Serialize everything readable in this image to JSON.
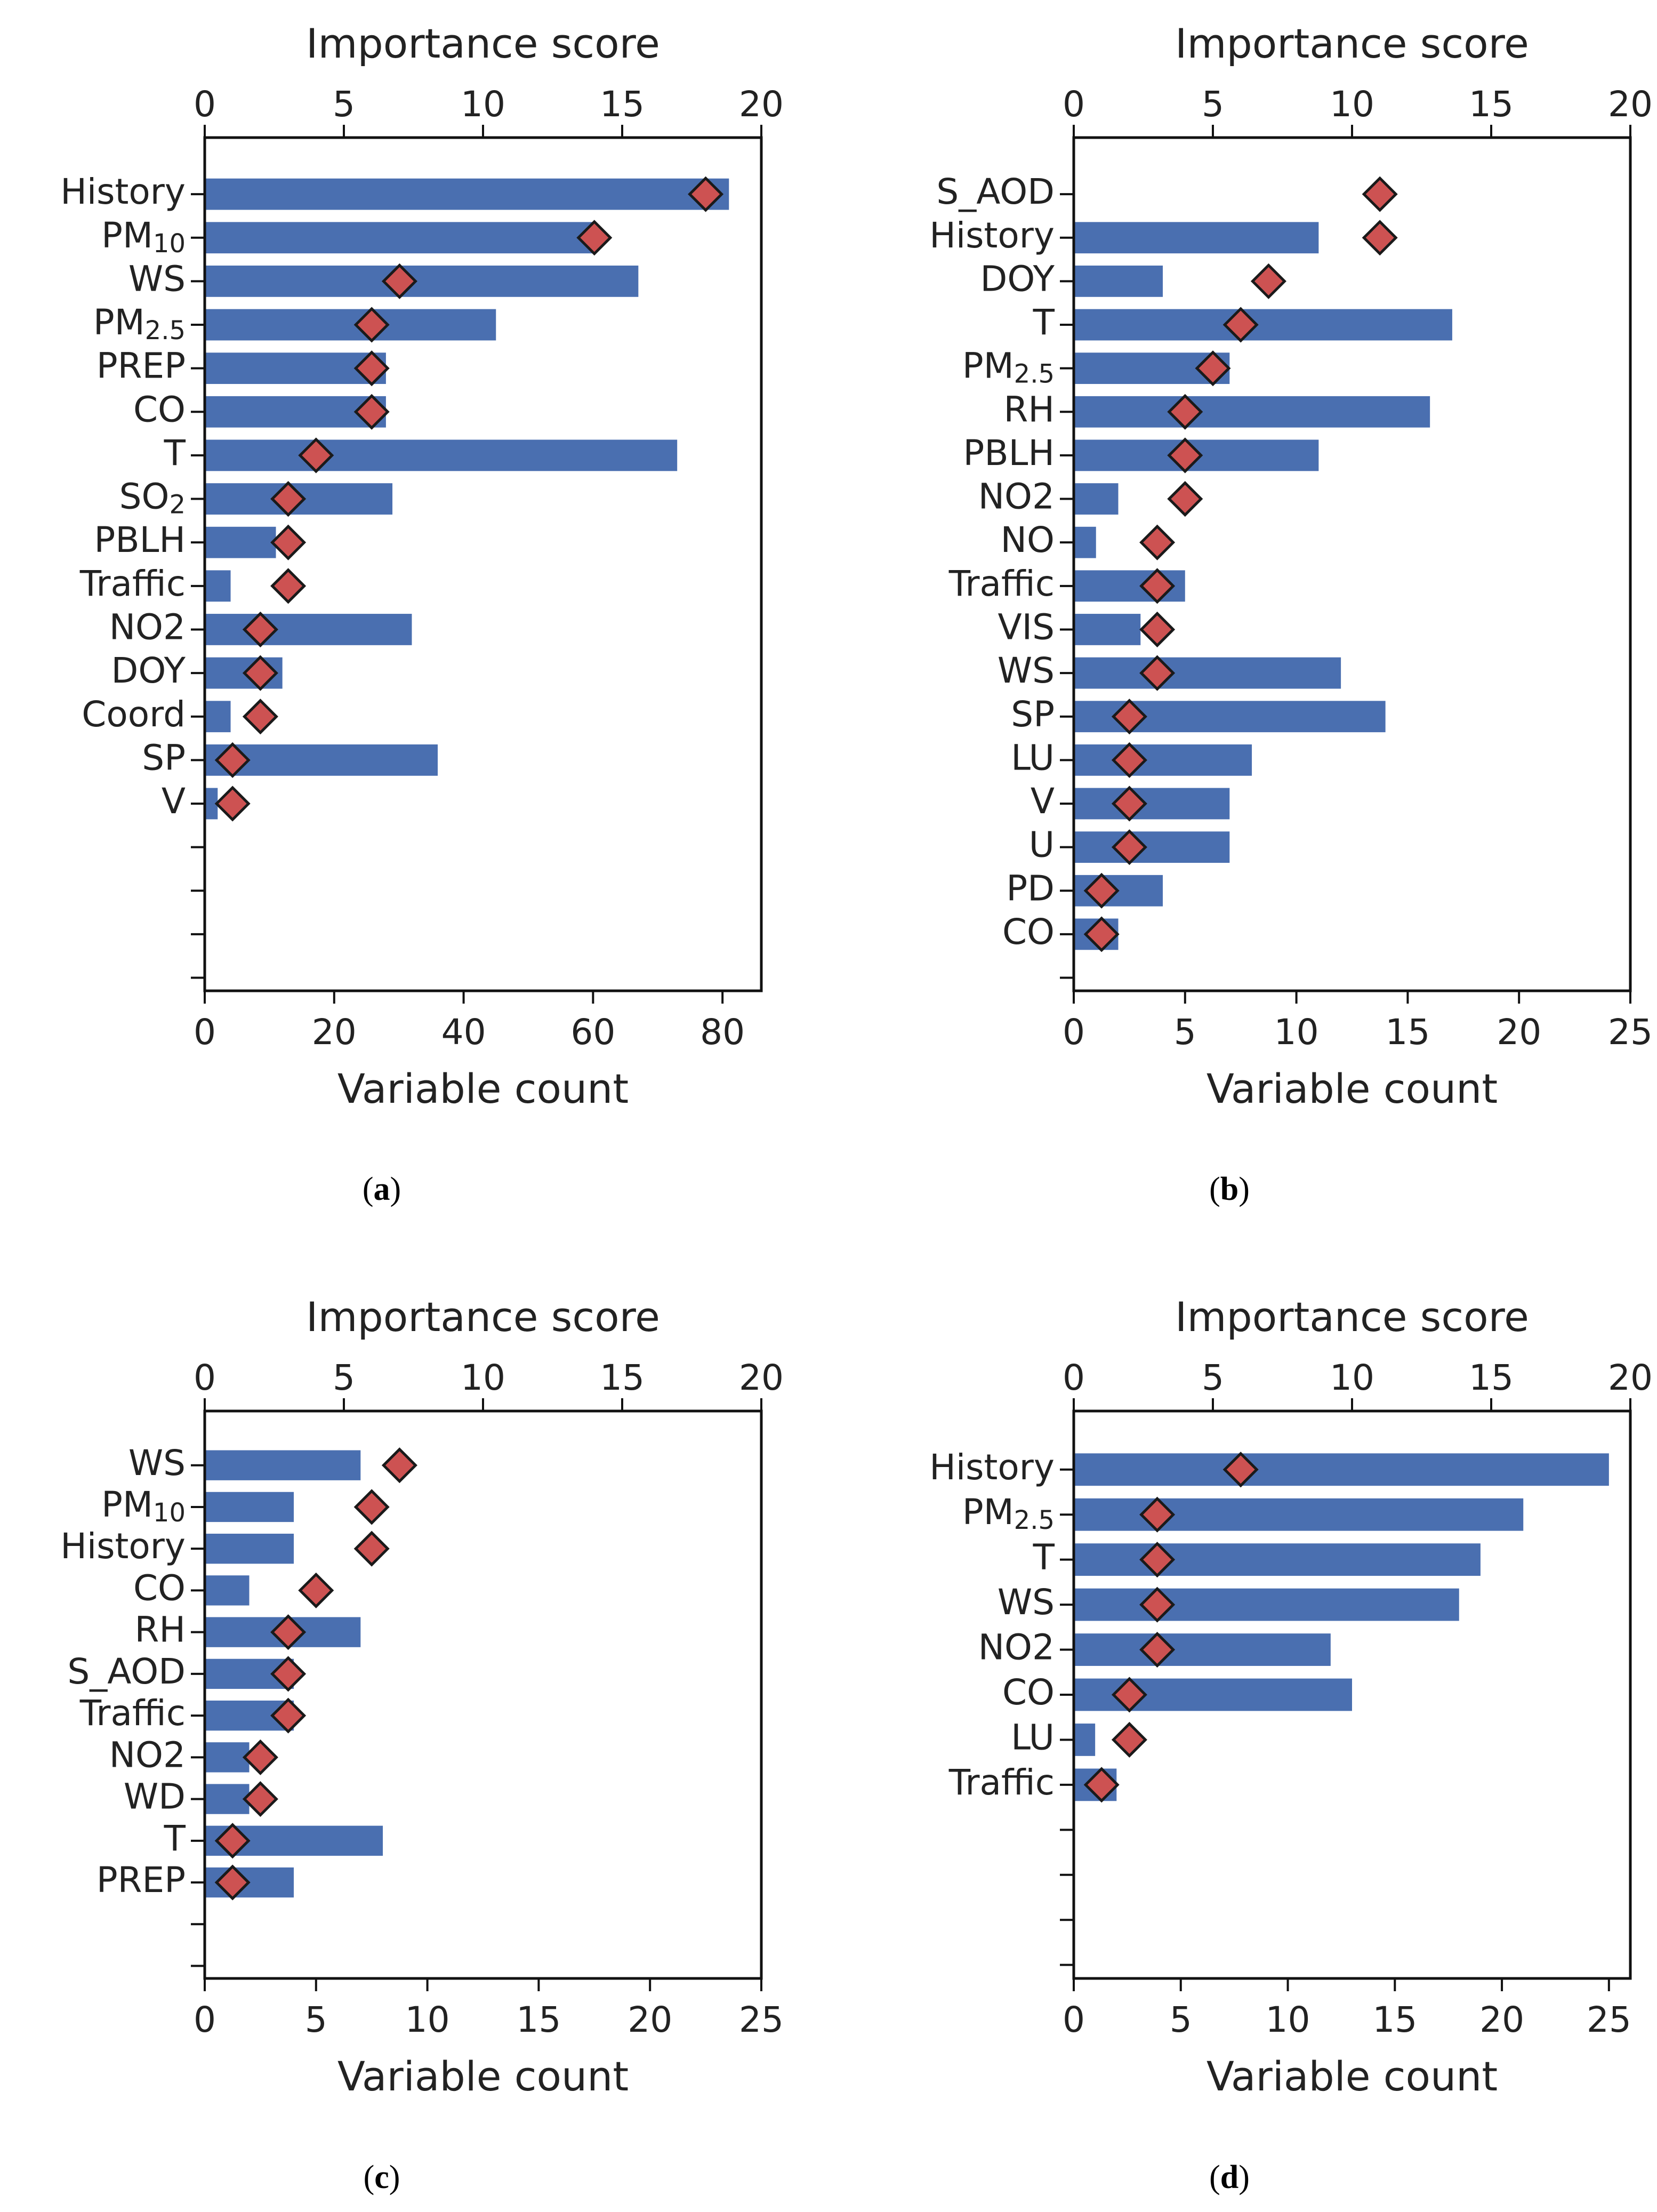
{
  "chart_data": [
    {
      "panel": "a",
      "type": "bar",
      "top_axis_label": "Importance score",
      "bottom_axis_label": "Variable count",
      "top_xlim": [
        0,
        20
      ],
      "top_ticks": [
        "0",
        "5",
        "10",
        "15",
        "20"
      ],
      "bottom_xlim": [
        0,
        86
      ],
      "bottom_ticks": [
        "0",
        "20",
        "40",
        "60",
        "80"
      ],
      "row_slots": 19,
      "categories": [
        "History",
        "PM10",
        "WS",
        "PM2.5",
        "PREP",
        "CO",
        "T",
        "SO2",
        "PBLH",
        "Traffic",
        "NO2",
        "DOY",
        "Coord",
        "SP",
        "V"
      ],
      "series": [
        {
          "role": "bar (Variable count, bottom axis)",
          "values": [
            81,
            60,
            67,
            45,
            28,
            28,
            73,
            29,
            11,
            4,
            32,
            12,
            4,
            36,
            2
          ]
        },
        {
          "role": "marker (Importance score, top axis)",
          "values": [
            18,
            14,
            7,
            6,
            6,
            6,
            4,
            3,
            3,
            3,
            2,
            2,
            2,
            1,
            1
          ]
        }
      ]
    },
    {
      "panel": "b",
      "type": "bar",
      "top_axis_label": "Importance score",
      "bottom_axis_label": "Variable count",
      "top_xlim": [
        0,
        20
      ],
      "top_ticks": [
        "0",
        "5",
        "10",
        "15",
        "20"
      ],
      "bottom_xlim": [
        0,
        25
      ],
      "bottom_ticks": [
        "0",
        "5",
        "10",
        "15",
        "20",
        "25"
      ],
      "row_slots": 19,
      "categories": [
        "S_AOD",
        "History",
        "DOY",
        "T",
        "PM2.5",
        "RH",
        "PBLH",
        "NO2",
        "NO",
        "Traffic",
        "VIS",
        "WS",
        "SP",
        "LU",
        "V",
        "U",
        "PD",
        "CO"
      ],
      "series": [
        {
          "role": "bar (Variable count, bottom axis)",
          "values": [
            0,
            11,
            4,
            17,
            7,
            16,
            11,
            2,
            1,
            5,
            3,
            12,
            14,
            8,
            7,
            7,
            4,
            2
          ]
        },
        {
          "role": "marker (Importance score, top axis)",
          "values": [
            11,
            11,
            7,
            6,
            5,
            4,
            4,
            4,
            3,
            3,
            3,
            3,
            2,
            2,
            2,
            2,
            1,
            1
          ]
        }
      ]
    },
    {
      "panel": "c",
      "type": "bar",
      "top_axis_label": "Importance score",
      "bottom_axis_label": "Variable count",
      "top_xlim": [
        0,
        20
      ],
      "top_ticks": [
        "0",
        "5",
        "10",
        "15",
        "20"
      ],
      "bottom_xlim": [
        0,
        25
      ],
      "bottom_ticks": [
        "0",
        "5",
        "10",
        "15",
        "20",
        "25"
      ],
      "row_slots": 13,
      "categories": [
        "WS",
        "PM10",
        "History",
        "CO",
        "RH",
        "S_AOD",
        "Traffic",
        "NO2",
        "WD",
        "T",
        "PREP"
      ],
      "series": [
        {
          "role": "bar (Variable count, bottom axis)",
          "values": [
            7,
            4,
            4,
            2,
            7,
            4,
            4,
            2,
            2,
            8,
            4
          ]
        },
        {
          "role": "marker (Importance score, top axis)",
          "values": [
            7,
            6,
            6,
            4,
            3,
            3,
            3,
            2,
            2,
            1,
            1
          ]
        }
      ]
    },
    {
      "panel": "d",
      "type": "bar",
      "top_axis_label": "Importance score",
      "bottom_axis_label": "Variable count",
      "top_xlim": [
        0,
        20
      ],
      "top_ticks": [
        "0",
        "5",
        "10",
        "15",
        "20"
      ],
      "bottom_xlim": [
        0,
        26
      ],
      "bottom_ticks": [
        "0",
        "5",
        "10",
        "15",
        "20",
        "25"
      ],
      "row_slots": 12,
      "categories": [
        "History",
        "PM2.5",
        "T",
        "WS",
        "NO2",
        "CO",
        "LU",
        "Traffic"
      ],
      "series": [
        {
          "role": "bar (Variable count, bottom axis)",
          "values": [
            25,
            21,
            19,
            18,
            12,
            13,
            1,
            2
          ]
        },
        {
          "role": "marker (Importance score, top axis)",
          "values": [
            6,
            3,
            3,
            3,
            3,
            2,
            2,
            1
          ]
        }
      ]
    }
  ],
  "captions": {
    "a": "a",
    "b": "b",
    "c": "c",
    "d": "d"
  },
  "colors": {
    "bar": "#4a6fb0",
    "marker_fill": "#cd5252",
    "marker_edge": "#1a1a1a",
    "axis": "#111111"
  }
}
